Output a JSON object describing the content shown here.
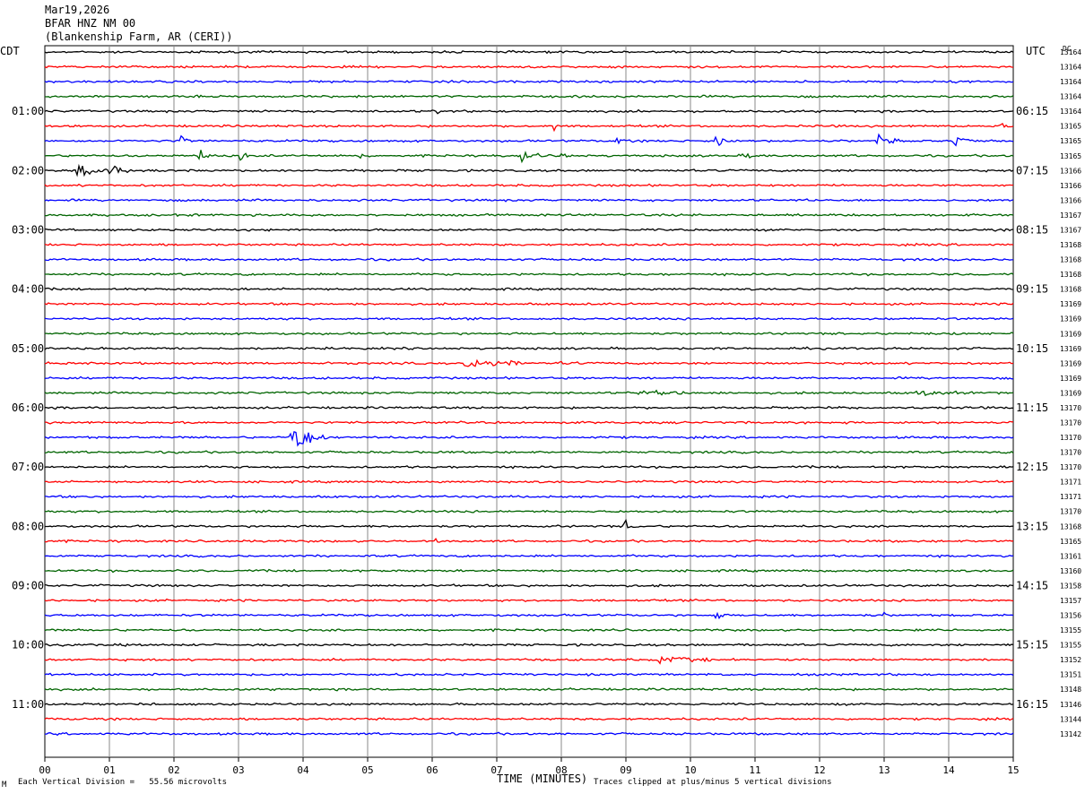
{
  "header": {
    "date": "Mar19,2026",
    "station": "BFAR HNZ NM 00",
    "location": "(Blankenship Farm, AR (CERI))"
  },
  "left_timezone": "CDT",
  "right_timezone": "UTC",
  "dc_label": "DC",
  "footer": {
    "scale_note": "Each Vertical Division =   55.56 microvolts",
    "clip_note": "Traces clipped at plus/minus 5 vertical divisions",
    "corner_mark": "M"
  },
  "chart_data": {
    "type": "line",
    "xlabel": "TIME (MINUTES)",
    "xlim": [
      0,
      15
    ],
    "x_ticks": [
      "00",
      "01",
      "02",
      "03",
      "04",
      "05",
      "06",
      "07",
      "08",
      "09",
      "10",
      "11",
      "12",
      "13",
      "14",
      "15"
    ],
    "trace_colors": [
      "#000000",
      "#ff0000",
      "#0000ff",
      "#006400"
    ],
    "traces_per_hour": 4,
    "left_hour_labels": [
      "01:00",
      "02:00",
      "03:00",
      "04:00",
      "05:00",
      "06:00",
      "07:00",
      "08:00",
      "09:00",
      "10:00",
      "11:00"
    ],
    "right_hour_labels": [
      "06:15",
      "07:15",
      "08:15",
      "09:15",
      "10:15",
      "11:15",
      "12:15",
      "13:15",
      "14:15",
      "15:15",
      "16:15"
    ],
    "hour_label_first_trace": 4,
    "dc_offsets": [
      "13164",
      "13164",
      "13164",
      "13164",
      "13164",
      "13165",
      "13165",
      "13165",
      "13166",
      "13166",
      "13166",
      "13167",
      "13167",
      "13168",
      "13168",
      "13168",
      "13168",
      "13169",
      "13169",
      "13169",
      "13169",
      "13169",
      "13169",
      "13169",
      "13170",
      "13170",
      "13170",
      "13170",
      "13170",
      "13171",
      "13171",
      "13170",
      "13168",
      "13165",
      "13161",
      "13160",
      "13158",
      "13157",
      "13156",
      "13155",
      "13155",
      "13152",
      "13151",
      "13148",
      "13146",
      "13144",
      "13142"
    ],
    "events": [
      {
        "trace": 4,
        "minute": 6.1,
        "amp": 1.2,
        "dur": 0.1
      },
      {
        "trace": 5,
        "minute": 7.9,
        "amp": 2.0,
        "dur": 0.1
      },
      {
        "trace": 5,
        "minute": 11.7,
        "amp": 1.5,
        "dur": 0.1
      },
      {
        "trace": 5,
        "minute": 14.8,
        "amp": 1.5,
        "dur": 0.15
      },
      {
        "trace": 6,
        "minute": 2.1,
        "amp": 2.5,
        "dur": 0.2
      },
      {
        "trace": 6,
        "minute": 8.8,
        "amp": 2.0,
        "dur": 0.3
      },
      {
        "trace": 6,
        "minute": 10.4,
        "amp": 2.5,
        "dur": 0.2
      },
      {
        "trace": 6,
        "minute": 12.9,
        "amp": 2.5,
        "dur": 0.4
      },
      {
        "trace": 6,
        "minute": 14.1,
        "amp": 2.5,
        "dur": 0.3
      },
      {
        "trace": 7,
        "minute": 2.4,
        "amp": 2.5,
        "dur": 0.2
      },
      {
        "trace": 7,
        "minute": 3.0,
        "amp": 2.0,
        "dur": 0.2
      },
      {
        "trace": 7,
        "minute": 4.9,
        "amp": 2.0,
        "dur": 0.1
      },
      {
        "trace": 7,
        "minute": 7.4,
        "amp": 3.0,
        "dur": 0.3
      },
      {
        "trace": 7,
        "minute": 8.0,
        "amp": 1.5,
        "dur": 0.2
      },
      {
        "trace": 7,
        "minute": 10.8,
        "amp": 2.0,
        "dur": 0.2
      },
      {
        "trace": 8,
        "minute": 0.5,
        "amp": 3.0,
        "dur": 0.5
      },
      {
        "trace": 8,
        "minute": 1.0,
        "amp": 2.0,
        "dur": 0.5
      },
      {
        "trace": 21,
        "minute": 6.5,
        "amp": 1.5,
        "dur": 2.0
      },
      {
        "trace": 23,
        "minute": 9.2,
        "amp": 1.0,
        "dur": 1.5
      },
      {
        "trace": 23,
        "minute": 13.5,
        "amp": 1.0,
        "dur": 1.0
      },
      {
        "trace": 26,
        "minute": 3.8,
        "amp": 7.0,
        "dur": 0.6
      },
      {
        "trace": 32,
        "minute": 8.95,
        "amp": 3.5,
        "dur": 0.25
      },
      {
        "trace": 33,
        "minute": 6.05,
        "amp": 1.2,
        "dur": 0.1
      },
      {
        "trace": 38,
        "minute": 10.4,
        "amp": 1.8,
        "dur": 0.15
      },
      {
        "trace": 38,
        "minute": 13.0,
        "amp": 1.2,
        "dur": 0.1
      },
      {
        "trace": 41,
        "minute": 9.5,
        "amp": 1.6,
        "dur": 1.2
      },
      {
        "trace": 44,
        "minute": 1.65,
        "amp": 1.0,
        "dur": 0.1
      }
    ]
  }
}
